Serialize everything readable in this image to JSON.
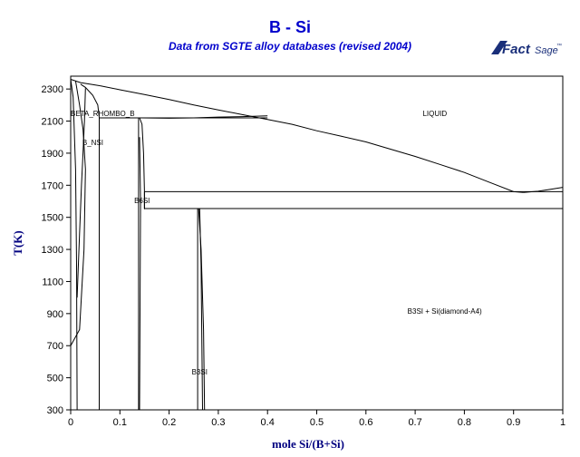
{
  "header": {
    "title": "B - Si",
    "subtitle": "Data from SGTE alloy databases (revised 2004)"
  },
  "logo": {
    "text_main": "Fact",
    "text_sage": "Sage",
    "mark": "™",
    "color": "#1a2f7a"
  },
  "colors": {
    "title": "#0000cc",
    "axis_label": "#000080",
    "line": "#000000"
  },
  "chart_data": {
    "type": "line",
    "title": "B - Si",
    "subtitle": "Data from SGTE alloy databases (revised 2004)",
    "xlabel": "mole Si/(B+Si)",
    "ylabel": "T(K)",
    "xlim": [
      0,
      1
    ],
    "ylim": [
      300,
      2380
    ],
    "grid": false,
    "x_ticks": [
      0,
      0.1,
      0.2,
      0.3,
      0.4,
      0.5,
      0.6,
      0.7,
      0.8,
      0.9,
      1
    ],
    "x_tick_labels": [
      "0",
      "0.1",
      "0.2",
      "0.3",
      "0.4",
      "0.5",
      "0.6",
      "0.7",
      "0.8",
      "0.9",
      "1"
    ],
    "y_ticks": [
      300,
      500,
      700,
      900,
      1100,
      1300,
      1500,
      1700,
      1900,
      2100,
      2300
    ],
    "y_tick_labels": [
      "300",
      "500",
      "700",
      "900",
      "1100",
      "1300",
      "1500",
      "1700",
      "1900",
      "2100",
      "2300"
    ],
    "series": [
      {
        "id": "liquidus-b-side",
        "points": [
          [
            0.0,
            2360
          ],
          [
            0.02,
            2340
          ],
          [
            0.05,
            2325
          ],
          [
            0.06,
            2320
          ]
        ]
      },
      {
        "id": "liquidus-main",
        "points": [
          [
            0.06,
            2320
          ],
          [
            0.1,
            2295
          ],
          [
            0.15,
            2265
          ],
          [
            0.2,
            2235
          ],
          [
            0.25,
            2200
          ],
          [
            0.3,
            2170
          ],
          [
            0.35,
            2140
          ],
          [
            0.4,
            2110
          ],
          [
            0.45,
            2080
          ],
          [
            0.5,
            2040
          ],
          [
            0.55,
            2005
          ],
          [
            0.6,
            1970
          ],
          [
            0.65,
            1925
          ],
          [
            0.7,
            1880
          ],
          [
            0.75,
            1830
          ],
          [
            0.8,
            1780
          ],
          [
            0.85,
            1720
          ],
          [
            0.9,
            1660
          ],
          [
            0.92,
            1655
          ]
        ]
      },
      {
        "id": "liquidus-si-side",
        "points": [
          [
            0.92,
            1655
          ],
          [
            0.95,
            1663
          ],
          [
            0.98,
            1677
          ],
          [
            1.0,
            1687
          ]
        ]
      },
      {
        "id": "peritectic-b6si-liquidus",
        "points": [
          [
            0.145,
            2120
          ],
          [
            0.2,
            2118
          ],
          [
            0.25,
            2120
          ],
          [
            0.3,
            2125
          ],
          [
            0.35,
            2128
          ],
          [
            0.4,
            2133
          ]
        ]
      },
      {
        "id": "beta-solvus-left",
        "points": [
          [
            0.0,
            2360
          ],
          [
            0.005,
            2250
          ],
          [
            0.01,
            1800
          ],
          [
            0.012,
            1200
          ],
          [
            0.013,
            300
          ]
        ]
      },
      {
        "id": "beta-solvus-right",
        "points": [
          [
            0.01,
            2350
          ],
          [
            0.018,
            2200
          ],
          [
            0.025,
            2050
          ],
          [
            0.03,
            1800
          ],
          [
            0.027,
            1300
          ],
          [
            0.018,
            800
          ],
          [
            0.0,
            700
          ]
        ]
      },
      {
        "id": "bnsi-left",
        "points": [
          [
            0.03,
            2305
          ],
          [
            0.028,
            2100
          ],
          [
            0.025,
            1900
          ],
          [
            0.022,
            1700
          ],
          [
            0.018,
            1400
          ],
          [
            0.013,
            1000
          ]
        ]
      },
      {
        "id": "bnsi-dome",
        "points": [
          [
            0.02,
            2330
          ],
          [
            0.03,
            2310
          ],
          [
            0.045,
            2260
          ],
          [
            0.055,
            2200
          ],
          [
            0.058,
            2120
          ]
        ]
      },
      {
        "id": "bnsi-right",
        "points": [
          [
            0.058,
            2120
          ],
          [
            0.058,
            1500
          ],
          [
            0.058,
            300
          ]
        ]
      },
      {
        "id": "b6si-left",
        "points": [
          [
            0.138,
            2120
          ],
          [
            0.138,
            1400
          ],
          [
            0.138,
            300
          ]
        ]
      },
      {
        "id": "b6si-right",
        "points": [
          [
            0.14,
            2120
          ],
          [
            0.145,
            2080
          ],
          [
            0.148,
            1900
          ],
          [
            0.15,
            1660
          ],
          [
            0.15,
            1550
          ]
        ]
      },
      {
        "id": "b6si-low",
        "points": [
          [
            0.14,
            2000
          ],
          [
            0.142,
            1600
          ],
          [
            0.14,
            300
          ]
        ]
      },
      {
        "id": "b3si-left",
        "points": [
          [
            0.258,
            1555
          ],
          [
            0.258,
            300
          ]
        ]
      },
      {
        "id": "b3si-right",
        "points": [
          [
            0.262,
            1555
          ],
          [
            0.265,
            1200
          ],
          [
            0.268,
            300
          ]
        ]
      },
      {
        "id": "b3si-curve",
        "points": [
          [
            0.26,
            1555
          ],
          [
            0.265,
            1300
          ],
          [
            0.27,
            800
          ],
          [
            0.272,
            300
          ]
        ]
      },
      {
        "id": "invariant-2120",
        "points": [
          [
            0.058,
            2120
          ],
          [
            0.4,
            2120
          ]
        ]
      },
      {
        "id": "invariant-1660",
        "points": [
          [
            0.15,
            1660
          ],
          [
            1.0,
            1660
          ]
        ]
      },
      {
        "id": "invariant-1555",
        "points": [
          [
            0.15,
            1555
          ],
          [
            1.0,
            1555
          ]
        ]
      },
      {
        "id": "vertical-1660-1555",
        "points": [
          [
            0.15,
            1660
          ],
          [
            0.15,
            1555
          ]
        ]
      }
    ],
    "annotations": [
      {
        "text": "BETA_RHOMBO_B",
        "x": 0.065,
        "y": 2130
      },
      {
        "text": "B_NSI",
        "x": 0.045,
        "y": 1950
      },
      {
        "text": "LIQUID",
        "x": 0.74,
        "y": 2130
      },
      {
        "text": "B6SI",
        "x": 0.145,
        "y": 1590
      },
      {
        "text": "B3SI + Si(diamond-A4)",
        "x": 0.76,
        "y": 900
      },
      {
        "text": "B3SI",
        "x": 0.262,
        "y": 520
      }
    ]
  }
}
